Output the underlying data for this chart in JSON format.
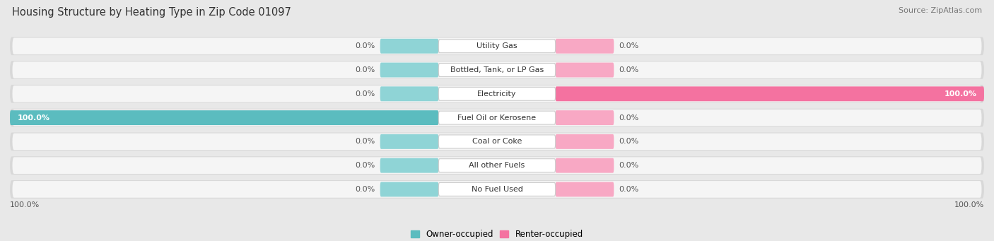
{
  "title": "Housing Structure by Heating Type in Zip Code 01097",
  "source": "Source: ZipAtlas.com",
  "categories": [
    "Utility Gas",
    "Bottled, Tank, or LP Gas",
    "Electricity",
    "Fuel Oil or Kerosene",
    "Coal or Coke",
    "All other Fuels",
    "No Fuel Used"
  ],
  "owner_values": [
    0.0,
    0.0,
    0.0,
    100.0,
    0.0,
    0.0,
    0.0
  ],
  "renter_values": [
    0.0,
    0.0,
    100.0,
    0.0,
    0.0,
    0.0,
    0.0
  ],
  "owner_color": "#5bbcbf",
  "renter_color": "#f472a0",
  "owner_color_light": "#8fd4d6",
  "renter_color_light": "#f8a8c4",
  "bg_color": "#e8e8e8",
  "row_bg_color": "#d8d8d8",
  "row_inner_color": "#f5f5f5",
  "bar_height": 0.62,
  "title_fontsize": 10.5,
  "source_fontsize": 8,
  "label_fontsize": 8,
  "cat_fontsize": 8,
  "legend_fontsize": 8.5,
  "xlim": [
    -100,
    100
  ],
  "zero_bar_width": 12,
  "x_left_label": "100.0%",
  "x_right_label": "100.0%"
}
